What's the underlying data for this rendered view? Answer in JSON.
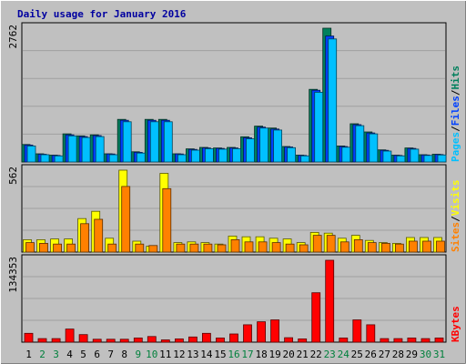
{
  "title": "Daily usage for January 2016",
  "colors": {
    "background": "#c0c0c0",
    "plot_background": "#c0c0c0",
    "grid": "#a0a0a0",
    "title": "#0000a0",
    "axis_text": "#000000",
    "weekday": "#000000",
    "weekend": "#00803c",
    "legend_separator": "#000000",
    "hits": "#00805c",
    "files": "#0040ff",
    "pages": "#00c0ff",
    "visits": "#ffff00",
    "sites": "#ff8000",
    "kbytes": "#ff0000"
  },
  "chart_data": {
    "type": "bar",
    "title": "Daily usage for January 2016",
    "categories": [
      "1",
      "2",
      "3",
      "4",
      "5",
      "6",
      "7",
      "8",
      "9",
      "10",
      "11",
      "12",
      "13",
      "14",
      "15",
      "16",
      "17",
      "18",
      "19",
      "20",
      "21",
      "22",
      "23",
      "24",
      "25",
      "26",
      "27",
      "28",
      "29",
      "30",
      "31"
    ],
    "weekend_days": [
      "2",
      "3",
      "9",
      "10",
      "16",
      "17",
      "23",
      "24",
      "30",
      "31"
    ],
    "grid": true,
    "panels": [
      {
        "id": "hits-files-pages",
        "max_label": "2762",
        "ylim": [
          0,
          2762
        ],
        "legend": [
          "Pages",
          "/",
          "Files",
          "/",
          "Hits"
        ],
        "legend_colors": [
          "pages",
          "legend_separator",
          "files",
          "legend_separator",
          "hits"
        ],
        "series": [
          {
            "name": "Hits",
            "color": "hits",
            "values": [
              360,
              170,
              140,
              580,
              540,
              560,
              170,
              880,
              210,
              880,
              880,
              170,
              270,
              300,
              290,
              300,
              520,
              740,
              700,
              320,
              140,
              1500,
              2762,
              330,
              790,
              620,
              250,
              140,
              290,
              150,
              160
            ]
          },
          {
            "name": "Files",
            "color": "files",
            "values": [
              350,
              160,
              135,
              560,
              525,
              545,
              165,
              860,
              200,
              860,
              860,
              165,
              260,
              290,
              280,
              290,
              500,
              720,
              680,
              310,
              135,
              1480,
              2600,
              320,
              770,
              600,
              240,
              135,
              280,
              145,
              155
            ]
          },
          {
            "name": "Pages",
            "color": "pages",
            "values": [
              330,
              150,
              125,
              540,
              505,
              525,
              150,
              830,
              185,
              830,
              830,
              150,
              245,
              275,
              265,
              275,
              480,
              700,
              660,
              295,
              125,
              1440,
              2540,
              305,
              750,
              580,
              225,
              125,
              265,
              135,
              145
            ]
          }
        ]
      },
      {
        "id": "visits-sites",
        "max_label": "562",
        "ylim": [
          0,
          562
        ],
        "legend": [
          "Sites",
          "/",
          "Visits"
        ],
        "legend_colors": [
          "sites",
          "legend_separator",
          "visits"
        ],
        "series": [
          {
            "name": "Visits",
            "color": "visits",
            "values": [
              85,
              85,
              90,
              90,
              230,
              280,
              95,
              562,
              75,
              40,
              540,
              65,
              70,
              65,
              55,
              110,
              105,
              105,
              95,
              90,
              65,
              135,
              130,
              95,
              115,
              80,
              65,
              60,
              100,
              100,
              100
            ]
          },
          {
            "name": "Sites",
            "color": "sites",
            "values": [
              65,
              60,
              55,
              55,
              195,
              225,
              55,
              450,
              55,
              45,
              435,
              55,
              55,
              55,
              50,
              85,
              70,
              70,
              65,
              55,
              50,
              115,
              115,
              70,
              85,
              65,
              60,
              55,
              75,
              75,
              75
            ]
          }
        ]
      },
      {
        "id": "kbytes",
        "max_label": "134353",
        "ylim": [
          0,
          134353
        ],
        "legend": [
          "KBytes"
        ],
        "legend_colors": [
          "kbytes"
        ],
        "series": [
          {
            "name": "KBytes",
            "color": "kbytes",
            "values": [
              14500,
              5800,
              5800,
              21500,
              12400,
              4800,
              4800,
              4800,
              6800,
              9300,
              3800,
              5300,
              8500,
              14500,
              6800,
              13500,
              28500,
              33500,
              36500,
              7300,
              5300,
              81000,
              134353,
              6800,
              36500,
              28500,
              5800,
              5800,
              6800,
              5800,
              6800
            ]
          }
        ]
      }
    ]
  }
}
